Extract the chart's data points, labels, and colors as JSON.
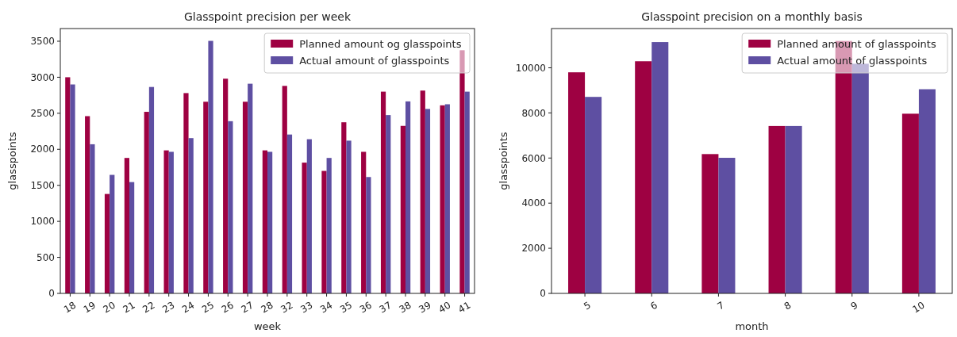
{
  "chart_data": [
    {
      "type": "bar",
      "title": "Glasspoint precision per week",
      "xlabel": "week",
      "ylabel": "glasspoints",
      "categories": [
        "18",
        "19",
        "20",
        "21",
        "22",
        "23",
        "24",
        "25",
        "26",
        "27",
        "28",
        "32",
        "33",
        "34",
        "35",
        "36",
        "37",
        "38",
        "39",
        "40",
        "41"
      ],
      "series": [
        {
          "name": "Planned amount og glasspoints",
          "color": "#9e0142",
          "values": [
            3000,
            2460,
            1380,
            1880,
            2520,
            1985,
            2780,
            2660,
            2980,
            2660,
            1985,
            2880,
            1815,
            1700,
            2375,
            1965,
            2800,
            2325,
            2815,
            2610,
            3375
          ]
        },
        {
          "name": "Actual amount of glasspoints",
          "color": "#5e4fa2",
          "values": [
            2900,
            2070,
            1645,
            1545,
            2865,
            1965,
            2155,
            3505,
            2390,
            2910,
            1965,
            2205,
            2140,
            1880,
            2120,
            1615,
            2475,
            2665,
            2560,
            2625,
            2800
          ]
        }
      ],
      "ylim": [
        0,
        3676
      ],
      "yticks": [
        0,
        500,
        1000,
        1500,
        2000,
        2500,
        3000,
        3500
      ],
      "legend": "top right"
    },
    {
      "type": "bar",
      "title": "Glasspoint precision on a monthly basis",
      "xlabel": "month",
      "ylabel": "glasspoints",
      "categories": [
        "5",
        "6",
        "7",
        "8",
        "9",
        "10"
      ],
      "series": [
        {
          "name": "Planned amount of glasspoints",
          "color": "#9e0142",
          "values": [
            9800,
            10290,
            6175,
            7420,
            11190,
            7965
          ]
        },
        {
          "name": "Actual amount of glasspoints",
          "color": "#5e4fa2",
          "values": [
            8710,
            11140,
            6010,
            7420,
            10180,
            9050
          ]
        }
      ],
      "ylim": [
        0,
        11740
      ],
      "yticks": [
        0,
        2000,
        4000,
        6000,
        8000,
        10000
      ],
      "legend": "top right"
    }
  ]
}
